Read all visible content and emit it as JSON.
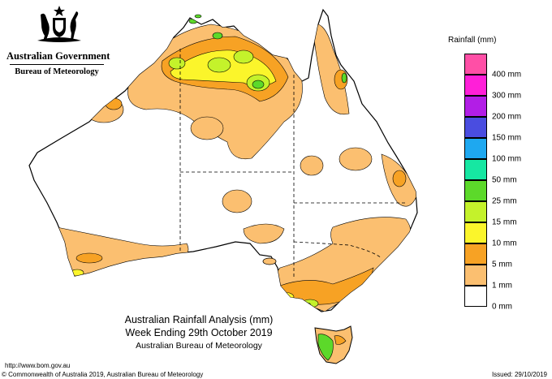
{
  "header": {
    "government_name": "Australian Government",
    "agency_name": "Bureau of Meteorology"
  },
  "map": {
    "title_line1": "Australian Rainfall Analysis (mm)",
    "title_line2": "Week Ending 29th October 2019",
    "title_line3": "Australian Bureau of Meteorology",
    "region": "Australia",
    "colors": {
      "land": "#ffffff",
      "outline": "#000000",
      "rain_1mm": "#fbbf70",
      "rain_5mm": "#f7a224",
      "rain_10mm": "#fbf52b",
      "rain_15mm": "#c4f22b",
      "rain_25mm": "#5cd92a",
      "rain_50mm": "#16e7a2"
    }
  },
  "legend": {
    "title": "Rainfall (mm)",
    "items": [
      {
        "label": "400 mm",
        "color": "#ff4fa6"
      },
      {
        "label": "300 mm",
        "color": "#ff1fd8"
      },
      {
        "label": "200 mm",
        "color": "#b21ee6"
      },
      {
        "label": "150 mm",
        "color": "#4a4de0"
      },
      {
        "label": "100 mm",
        "color": "#1ea8f0"
      },
      {
        "label": "50 mm",
        "color": "#16e7a2"
      },
      {
        "label": "25 mm",
        "color": "#5cd92a"
      },
      {
        "label": "15 mm",
        "color": "#c4f22b"
      },
      {
        "label": "10 mm",
        "color": "#fbf52b"
      },
      {
        "label": "5 mm",
        "color": "#f7a224"
      },
      {
        "label": "1 mm",
        "color": "#fbbf70"
      },
      {
        "label": "0 mm",
        "color": "#ffffff"
      }
    ]
  },
  "footer": {
    "url": "http://www.bom.gov.au",
    "copyright": "© Commonwealth of Australia 2019, Australian Bureau of Meteorology",
    "issued": "Issued: 29/10/2019"
  }
}
